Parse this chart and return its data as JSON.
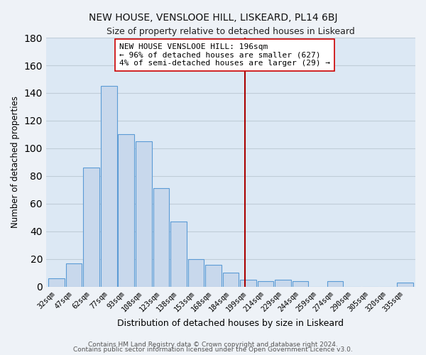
{
  "title": "NEW HOUSE, VENSLOOE HILL, LISKEARD, PL14 6BJ",
  "subtitle": "Size of property relative to detached houses in Liskeard",
  "xlabel": "Distribution of detached houses by size in Liskeard",
  "ylabel": "Number of detached properties",
  "bin_labels": [
    "32sqm",
    "47sqm",
    "62sqm",
    "77sqm",
    "93sqm",
    "108sqm",
    "123sqm",
    "138sqm",
    "153sqm",
    "168sqm",
    "184sqm",
    "199sqm",
    "214sqm",
    "229sqm",
    "244sqm",
    "259sqm",
    "274sqm",
    "290sqm",
    "305sqm",
    "320sqm",
    "335sqm"
  ],
  "bar_heights": [
    6,
    17,
    86,
    145,
    110,
    105,
    71,
    47,
    20,
    16,
    10,
    5,
    4,
    5,
    4,
    0,
    4,
    0,
    0,
    0,
    3
  ],
  "bar_color": "#c8d8ec",
  "bar_edge_color": "#5b9bd5",
  "vline_color": "#aa0000",
  "ylim": [
    0,
    180
  ],
  "yticks": [
    0,
    20,
    40,
    60,
    80,
    100,
    120,
    140,
    160,
    180
  ],
  "annotation_line1": "NEW HOUSE VENSLOOE HILL: 196sqm",
  "annotation_line2": "← 96% of detached houses are smaller (627)",
  "annotation_line3": "4% of semi-detached houses are larger (29) →",
  "footnote1": "Contains HM Land Registry data © Crown copyright and database right 2024.",
  "footnote2": "Contains public sector information licensed under the Open Government Licence v3.0.",
  "background_color": "#eef2f7",
  "plot_background_color": "#dce8f4",
  "grid_color": "#c0cdd8"
}
